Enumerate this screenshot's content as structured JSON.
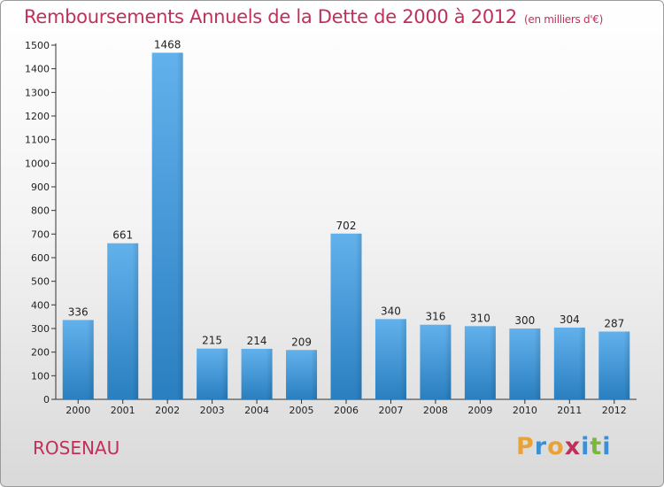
{
  "header": {
    "title": "Remboursements Annuels de la Dette de 2000 à 2012",
    "unit": "(en milliers d'€)"
  },
  "footer": {
    "commune": "ROSENAU",
    "brand": "Proxiti",
    "brand_letters": [
      "P",
      "r",
      "o",
      "x",
      "i",
      "t",
      "i"
    ],
    "brand_colors": [
      "#e8a23a",
      "#3a8fd6",
      "#e8a23a",
      "#c0305a",
      "#3a8fd6",
      "#7bb83a",
      "#3a8fd6"
    ]
  },
  "colors": {
    "bar_light": "#62b1ec",
    "bar_dark": "#2a7fc0",
    "axis": "#333333",
    "gridline": "#cccccc"
  },
  "chart_data": {
    "type": "bar",
    "categories": [
      "2000",
      "2001",
      "2002",
      "2003",
      "2004",
      "2005",
      "2006",
      "2007",
      "2008",
      "2009",
      "2010",
      "2011",
      "2012"
    ],
    "values": [
      336,
      661,
      1468,
      215,
      214,
      209,
      702,
      340,
      316,
      310,
      300,
      304,
      287
    ],
    "data_labels": [
      "336",
      "661",
      "1468",
      "215",
      "214",
      "209",
      "702",
      "340",
      "316",
      "310",
      "300",
      "304",
      "287"
    ],
    "ylim": [
      0,
      1500
    ],
    "y_ticks": [
      0,
      100,
      200,
      300,
      400,
      500,
      600,
      700,
      800,
      900,
      1000,
      1100,
      1200,
      1300,
      1400,
      1500
    ],
    "grid": false,
    "legend": "none"
  }
}
